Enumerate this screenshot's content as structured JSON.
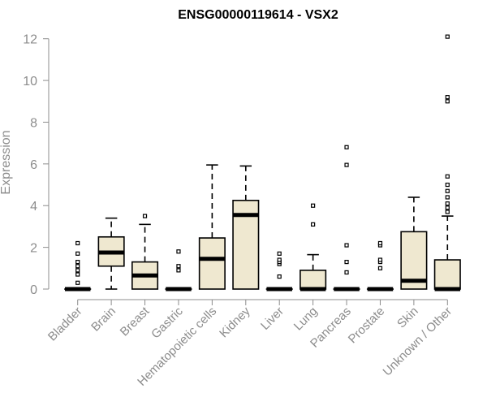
{
  "chart_data": {
    "type": "box",
    "title": "ENSG00000119614 - VSX2",
    "ylabel": "Expression",
    "xlabel": "",
    "ylim": [
      0,
      12.3
    ],
    "yticks": [
      0,
      2,
      4,
      6,
      8,
      10,
      12
    ],
    "grid": false,
    "legend": "none",
    "colors": {
      "box_fill": "#efe8d0",
      "box_stroke": "#000000",
      "axis": "#8c8c8c"
    },
    "categories": [
      "Bladder",
      "Brain",
      "Breast",
      "Gastric",
      "Hematopoietic cells",
      "Kidney",
      "Liver",
      "Lung",
      "Pancreas",
      "Prostate",
      "Skin",
      "Unknown / Other"
    ],
    "boxes": [
      {
        "name": "Bladder",
        "min": 0,
        "q1": 0,
        "median": 0,
        "q3": 0,
        "max": 0,
        "outliers": [
          0.3,
          0.7,
          0.9,
          1.1,
          1.3,
          1.7,
          2.2
        ]
      },
      {
        "name": "Brain",
        "min": 0,
        "q1": 1.1,
        "median": 1.75,
        "q3": 2.5,
        "max": 3.4,
        "outliers": []
      },
      {
        "name": "Breast",
        "min": 0,
        "q1": 0,
        "median": 0.65,
        "q3": 1.3,
        "max": 3.1,
        "outliers": [
          3.5
        ]
      },
      {
        "name": "Gastric",
        "min": 0,
        "q1": 0,
        "median": 0,
        "q3": 0,
        "max": 0,
        "outliers": [
          0.9,
          1.1,
          1.8
        ]
      },
      {
        "name": "Hematopoietic cells",
        "min": 0,
        "q1": 0,
        "median": 1.45,
        "q3": 2.45,
        "max": 5.95,
        "outliers": []
      },
      {
        "name": "Kidney",
        "min": 0,
        "q1": 0,
        "median": 3.55,
        "q3": 4.25,
        "max": 5.9,
        "outliers": []
      },
      {
        "name": "Liver",
        "min": 0,
        "q1": 0,
        "median": 0,
        "q3": 0,
        "max": 0,
        "outliers": [
          0.6,
          1.2,
          1.3,
          1.4,
          1.7
        ]
      },
      {
        "name": "Lung",
        "min": 0,
        "q1": 0,
        "median": 0,
        "q3": 0.9,
        "max": 1.65,
        "outliers": [
          3.1,
          4.0
        ]
      },
      {
        "name": "Pancreas",
        "min": 0,
        "q1": 0,
        "median": 0,
        "q3": 0,
        "max": 0,
        "outliers": [
          0.8,
          1.3,
          2.1,
          5.95,
          6.8
        ]
      },
      {
        "name": "Prostate",
        "min": 0,
        "q1": 0,
        "median": 0,
        "q3": 0,
        "max": 0,
        "outliers": [
          1.0,
          1.3,
          1.4,
          2.1,
          2.2
        ]
      },
      {
        "name": "Skin",
        "min": 0,
        "q1": 0,
        "median": 0.4,
        "q3": 2.75,
        "max": 4.4,
        "outliers": []
      },
      {
        "name": "Unknown / Other",
        "min": 0,
        "q1": 0,
        "median": 0,
        "q3": 1.4,
        "max": 3.5,
        "outliers": [
          3.7,
          3.9,
          4.1,
          4.4,
          4.7,
          5.0,
          5.4,
          9.0,
          9.2,
          12.1
        ]
      }
    ]
  }
}
